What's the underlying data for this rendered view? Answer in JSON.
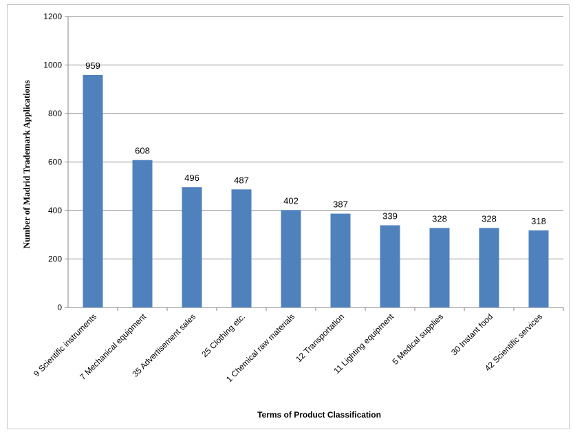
{
  "chart_data": {
    "type": "bar",
    "categories": [
      "9 Scientific instruments",
      "7 Mechanical equipment",
      "35 Advertisement sales",
      "25 Clothing etc.",
      "1 Chemical raw materials",
      "12 Transportation",
      "11 Lighting equipment",
      "5 Medical supplies",
      "30 Instant food",
      "42 Scientific services"
    ],
    "values": [
      959,
      608,
      496,
      487,
      402,
      387,
      339,
      328,
      328,
      318
    ],
    "data_labels": [
      "959",
      "608",
      "496",
      "487",
      "402",
      "387",
      "339",
      "328",
      "328",
      "318"
    ],
    "title": "",
    "xlabel": "Terms of Product Classification",
    "ylabel": "Number of Madrid Trademark Applications",
    "ylim": [
      0,
      1200
    ],
    "yticks": [
      "0",
      "200",
      "400",
      "600",
      "800",
      "1000",
      "1200"
    ],
    "grid": "horizontal",
    "legend": "none",
    "colors": {
      "bar": "#4f81bd",
      "grid": "#868686",
      "axis": "#868686"
    }
  }
}
